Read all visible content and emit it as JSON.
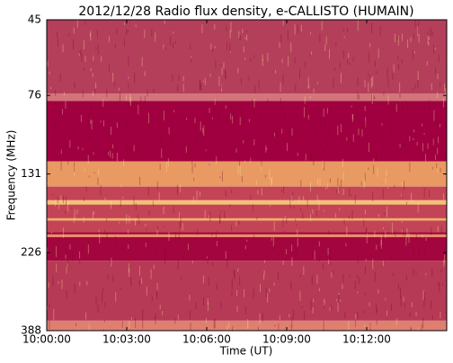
{
  "chart_data": {
    "type": "spectrogram",
    "title": "2012/12/28  Radio flux density, e-CALLISTO (HUMAIN)",
    "xlabel": "Time (UT)",
    "ylabel": "Frequency (MHz)",
    "xlim": [
      "10:00:00",
      "10:15:00"
    ],
    "xticks": [
      "10:00:00",
      "10:03:00",
      "10:06:00",
      "10:09:00",
      "10:12:00"
    ],
    "ylim": [
      45,
      388
    ],
    "y_inverted": true,
    "y_log": true,
    "yticks": [
      45,
      76,
      131,
      226,
      388
    ],
    "bands": [
      {
        "from": 45,
        "to": 75,
        "color": "#b43f5a"
      },
      {
        "from": 75,
        "to": 79,
        "color": "#d27479"
      },
      {
        "from": 79,
        "to": 120,
        "color": "#a00040"
      },
      {
        "from": 120,
        "to": 143,
        "color": "#e89a62"
      },
      {
        "from": 143,
        "to": 196,
        "color": "#c44457"
      },
      {
        "from": 157,
        "to": 162,
        "color": "#f3c07a"
      },
      {
        "from": 178,
        "to": 181,
        "color": "#f0b070"
      },
      {
        "from": 196,
        "to": 239,
        "color": "#a3063f"
      },
      {
        "from": 199,
        "to": 203,
        "color": "#e79068"
      },
      {
        "from": 239,
        "to": 362,
        "color": "#b63955"
      },
      {
        "from": 362,
        "to": 388,
        "color": "#de8070"
      }
    ]
  }
}
